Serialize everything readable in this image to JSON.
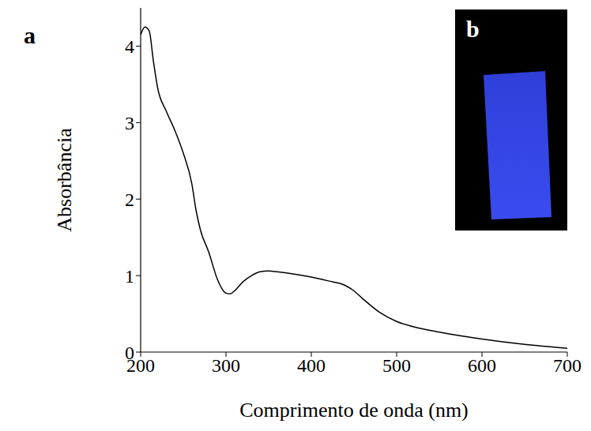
{
  "chart_data": {
    "type": "line",
    "x_label": "Comprimento de onda (nm)",
    "y_label": "Absorbância",
    "annotations": [
      "a",
      "b"
    ],
    "x": [
      200,
      205,
      210,
      215,
      220,
      230,
      240,
      250,
      260,
      265,
      270,
      280,
      290,
      300,
      305,
      310,
      320,
      330,
      340,
      350,
      360,
      380,
      400,
      420,
      440,
      450,
      460,
      480,
      500,
      520,
      550,
      600,
      650,
      700
    ],
    "values": [
      4.15,
      4.25,
      4.2,
      3.8,
      3.45,
      3.15,
      2.9,
      2.6,
      2.2,
      1.85,
      1.6,
      1.3,
      0.95,
      0.77,
      0.76,
      0.8,
      0.92,
      1.0,
      1.05,
      1.06,
      1.05,
      1.02,
      0.98,
      0.93,
      0.87,
      0.8,
      0.7,
      0.52,
      0.4,
      0.33,
      0.26,
      0.17,
      0.1,
      0.05
    ],
    "color": "#000000",
    "xlim": [
      200,
      700
    ],
    "ylim": [
      0,
      4.5
    ],
    "xticks": [
      200,
      300,
      400,
      500,
      600,
      700
    ],
    "yticks": [
      0,
      1,
      2,
      3,
      4
    ],
    "grid": false
  }
}
